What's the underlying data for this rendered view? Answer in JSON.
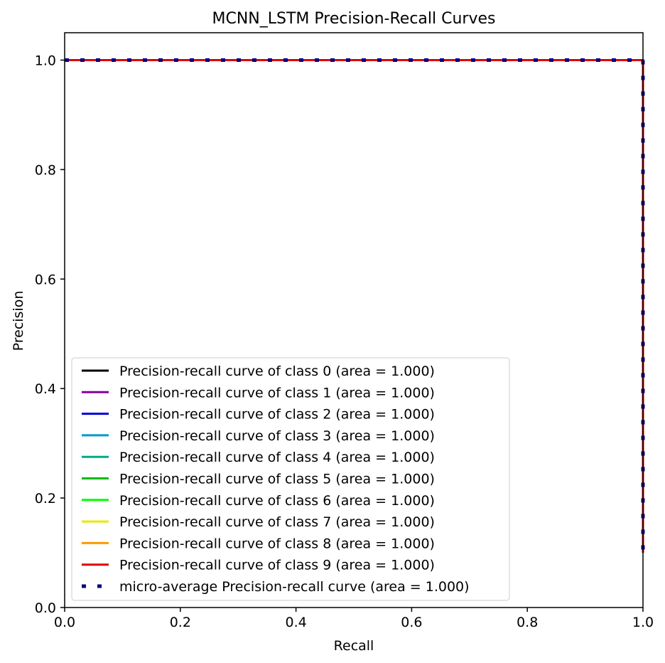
{
  "chart_data": {
    "type": "line",
    "title": "MCNN_LSTM Precision-Recall Curves",
    "xlabel": "Recall",
    "ylabel": "Precision",
    "xlim": [
      0.0,
      1.0
    ],
    "ylim": [
      0.0,
      1.05
    ],
    "xticks": [
      0.0,
      0.2,
      0.4,
      0.6,
      0.8,
      1.0
    ],
    "yticks": [
      0.0,
      0.2,
      0.4,
      0.6,
      0.8,
      1.0
    ],
    "xtick_labels": [
      "0.0",
      "0.2",
      "0.4",
      "0.6",
      "0.8",
      "1.0"
    ],
    "ytick_labels": [
      "0.0",
      "0.2",
      "0.4",
      "0.6",
      "0.8",
      "1.0"
    ],
    "grid": false,
    "legend_position": "lower-left",
    "series": [
      {
        "name": "Precision-recall curve of class 0 (area = 1.000)",
        "color": "#000000",
        "style": "solid",
        "x": [
          0.0,
          1.0,
          1.0
        ],
        "y": [
          1.0,
          1.0,
          0.1
        ]
      },
      {
        "name": "Precision-recall curve of class 1 (area = 1.000)",
        "color": "#8800a0",
        "style": "solid",
        "x": [
          0.0,
          1.0,
          1.0
        ],
        "y": [
          1.0,
          1.0,
          0.1
        ]
      },
      {
        "name": "Precision-recall curve of class 2 (area = 1.000)",
        "color": "#0000d8",
        "style": "solid",
        "x": [
          0.0,
          1.0,
          1.0
        ],
        "y": [
          1.0,
          1.0,
          0.1
        ]
      },
      {
        "name": "Precision-recall curve of class 3 (area = 1.000)",
        "color": "#0099cc",
        "style": "solid",
        "x": [
          0.0,
          1.0,
          1.0
        ],
        "y": [
          1.0,
          1.0,
          0.1
        ]
      },
      {
        "name": "Precision-recall curve of class 4 (area = 1.000)",
        "color": "#00aa88",
        "style": "solid",
        "x": [
          0.0,
          1.0,
          1.0
        ],
        "y": [
          1.0,
          1.0,
          0.1
        ]
      },
      {
        "name": "Precision-recall curve of class 5 (area = 1.000)",
        "color": "#00bb00",
        "style": "solid",
        "x": [
          0.0,
          1.0,
          1.0
        ],
        "y": [
          1.0,
          1.0,
          0.1
        ]
      },
      {
        "name": "Precision-recall curve of class 6 (area = 1.000)",
        "color": "#00ff00",
        "style": "solid",
        "x": [
          0.0,
          1.0,
          1.0
        ],
        "y": [
          1.0,
          1.0,
          0.1
        ]
      },
      {
        "name": "Precision-recall curve of class 7 (area = 1.000)",
        "color": "#e8e800",
        "style": "solid",
        "x": [
          0.0,
          1.0,
          1.0
        ],
        "y": [
          1.0,
          1.0,
          0.1
        ]
      },
      {
        "name": "Precision-recall curve of class 8 (area = 1.000)",
        "color": "#ff9900",
        "style": "solid",
        "x": [
          0.0,
          1.0,
          1.0
        ],
        "y": [
          1.0,
          1.0,
          0.1
        ]
      },
      {
        "name": "Precision-recall curve of class 9 (area = 1.000)",
        "color": "#dd0000",
        "style": "solid",
        "x": [
          0.0,
          1.0,
          1.0
        ],
        "y": [
          1.0,
          1.0,
          0.1
        ]
      },
      {
        "name": "micro-average Precision-recall curve (area = 1.000)",
        "color": "#000080",
        "style": "dotted",
        "x": [
          0.0,
          1.0,
          1.0
        ],
        "y": [
          1.0,
          1.0,
          0.1
        ]
      }
    ]
  }
}
